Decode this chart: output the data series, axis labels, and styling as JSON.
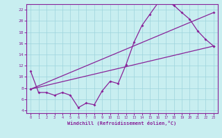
{
  "xlabel": "Windchill (Refroidissement éolien,°C)",
  "bg_color": "#c8eef0",
  "grid_color": "#9dd4dc",
  "line_color": "#882299",
  "xlim_min": -0.5,
  "xlim_max": 23.5,
  "ylim_min": 3.5,
  "ylim_max": 23.0,
  "yticks": [
    4,
    6,
    8,
    10,
    12,
    14,
    16,
    18,
    20,
    22
  ],
  "xticks": [
    0,
    1,
    2,
    3,
    4,
    5,
    6,
    7,
    8,
    9,
    10,
    11,
    12,
    13,
    14,
    15,
    16,
    17,
    18,
    19,
    20,
    21,
    22,
    23
  ],
  "line1_x": [
    0,
    1,
    2,
    3,
    4,
    5,
    6,
    7,
    8,
    9,
    10,
    11,
    12,
    13,
    14,
    15,
    16,
    17,
    18,
    19,
    20,
    21,
    22,
    23
  ],
  "line1_y": [
    11.0,
    7.2,
    7.2,
    6.7,
    7.2,
    6.7,
    4.5,
    5.3,
    5.0,
    7.5,
    9.2,
    8.8,
    12.2,
    16.2,
    19.2,
    21.2,
    23.2,
    23.4,
    22.8,
    21.5,
    20.3,
    18.2,
    16.7,
    15.5
  ],
  "line2_x": [
    0,
    23
  ],
  "line2_y": [
    7.8,
    15.5
  ],
  "line3_x": [
    0,
    23
  ],
  "line3_y": [
    7.8,
    21.5
  ]
}
